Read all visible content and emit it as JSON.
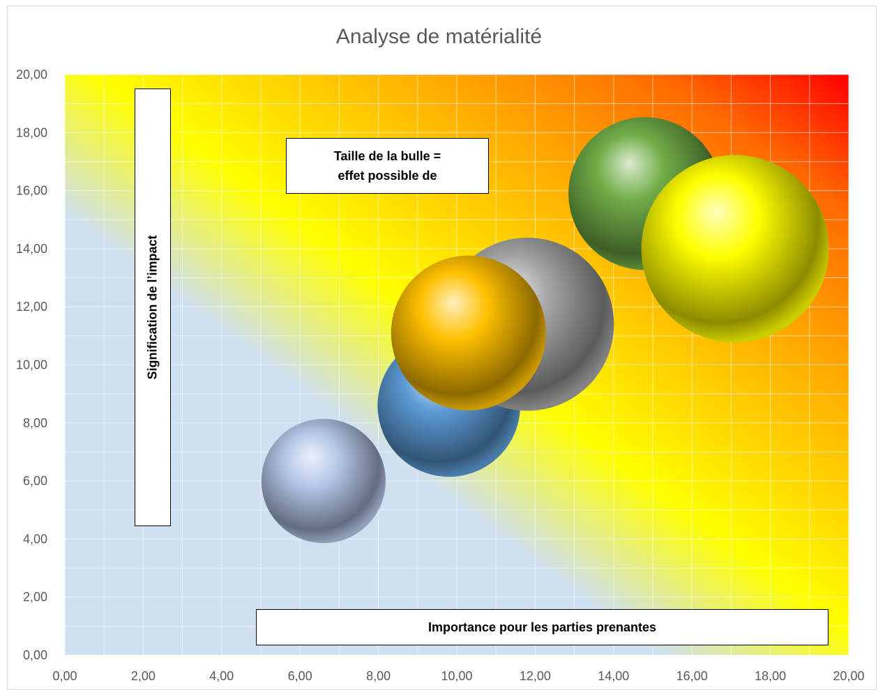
{
  "chart_data": {
    "type": "bubble",
    "title": "Analyse de matérialité",
    "xlabel": "Importance pour les parties prenantes",
    "ylabel": "Signification de l’impact",
    "annotation": [
      "Taille de la bulle =",
      "effet possible de"
    ],
    "xlim": [
      0,
      20
    ],
    "ylim": [
      0,
      20
    ],
    "grid": true,
    "x_ticks": [
      "0,00",
      "2,00",
      "4,00",
      "6,00",
      "8,00",
      "10,00",
      "12,00",
      "14,00",
      "16,00",
      "18,00",
      "20,00"
    ],
    "y_ticks": [
      "0,00",
      "2,00",
      "4,00",
      "6,00",
      "8,00",
      "10,00",
      "12,00",
      "14,00",
      "16,00",
      "18,00",
      "20,00"
    ],
    "background": "gradient from light blue (bottom-left) through yellow to red (top-right)",
    "bubbles": [
      {
        "x": 6.6,
        "y": 6.0,
        "size": 1.22,
        "color": "#b4c7e7"
      },
      {
        "x": 9.8,
        "y": 8.6,
        "size": 1.4,
        "color": "#5b9bd5"
      },
      {
        "x": 11.8,
        "y": 11.4,
        "size": 1.7,
        "color": "#a5a5a5"
      },
      {
        "x": 10.3,
        "y": 11.1,
        "size": 1.52,
        "color": "#ffc000"
      },
      {
        "x": 14.8,
        "y": 15.9,
        "size": 1.5,
        "color": "#70ad47"
      },
      {
        "x": 17.1,
        "y": 14.0,
        "size": 1.84,
        "color": "#ffff00"
      }
    ]
  }
}
